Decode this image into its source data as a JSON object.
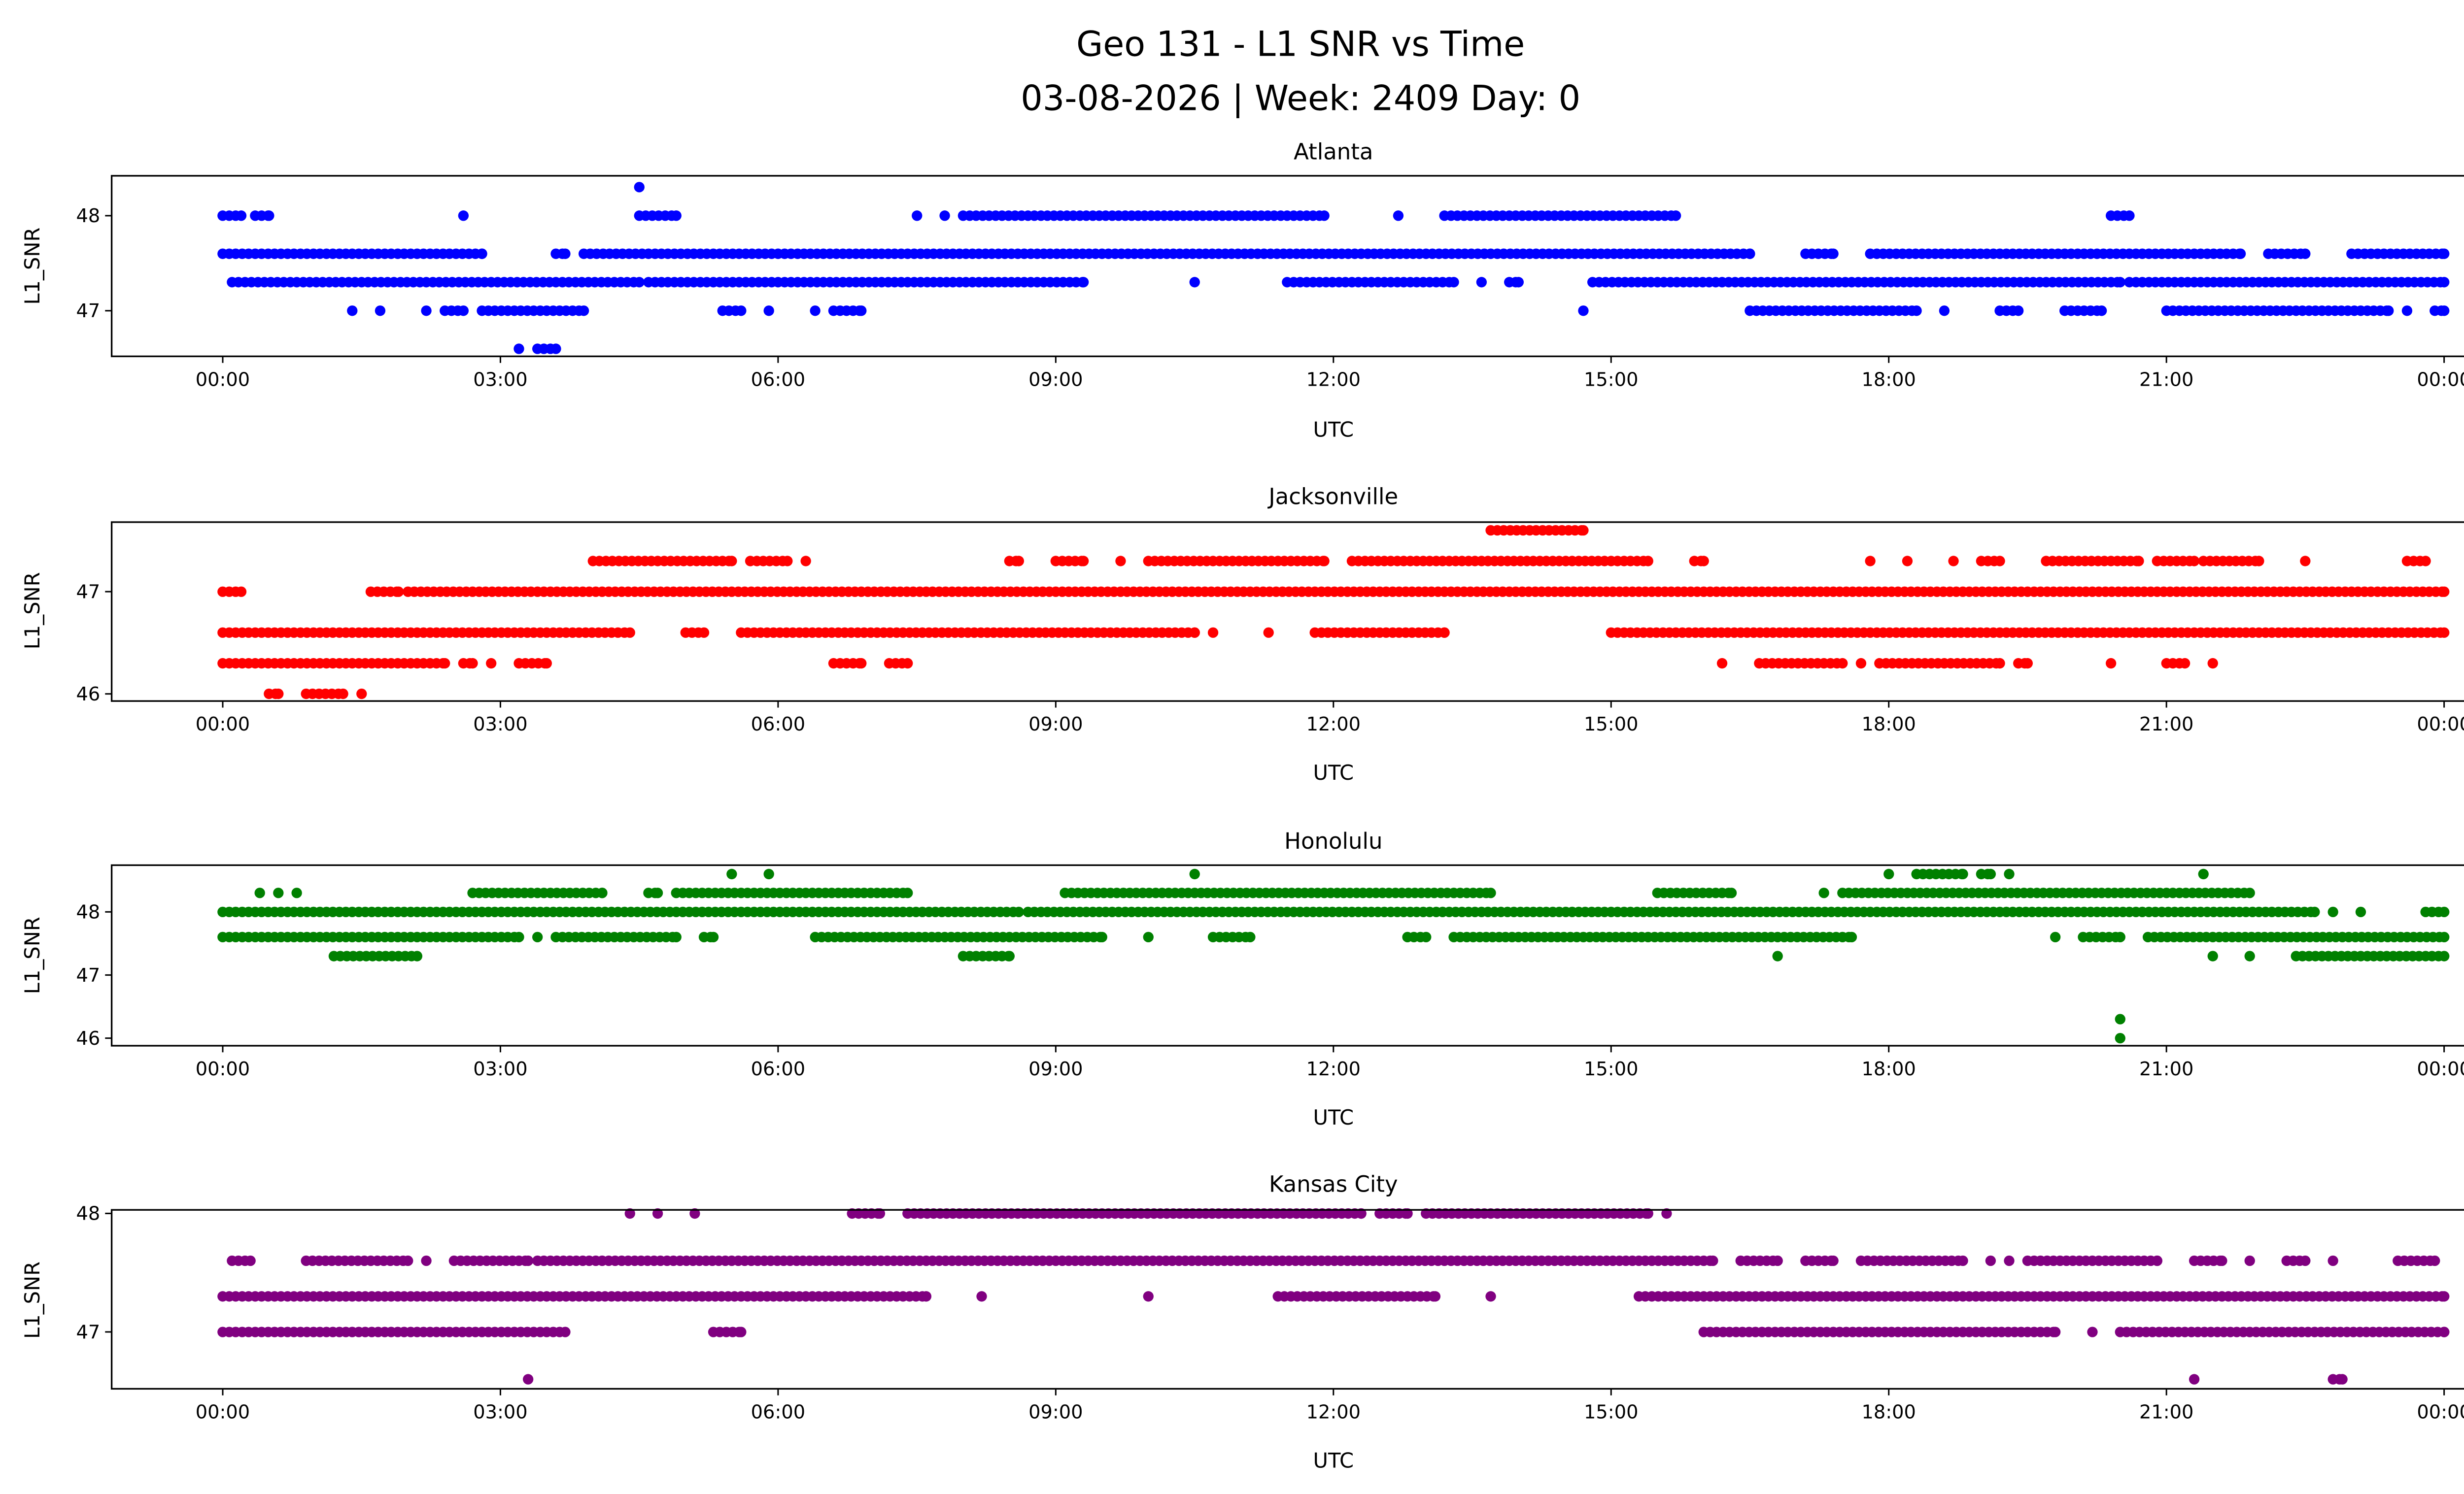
{
  "figure": {
    "title_line1": "Geo 131 - L1 SNR vs Time",
    "title_line2": "03-08-2026 | Week: 2409 Day: 0"
  },
  "chart_data": [
    {
      "type": "scatter",
      "title": "Atlanta",
      "xlabel": "UTC",
      "ylabel": "L1_SNR",
      "color": "#0000ff",
      "xlim_hours": [
        -1.2,
        25.2
      ],
      "xticks": [
        {
          "h": 0,
          "label": "00:00"
        },
        {
          "h": 3,
          "label": "03:00"
        },
        {
          "h": 6,
          "label": "06:00"
        },
        {
          "h": 9,
          "label": "09:00"
        },
        {
          "h": 12,
          "label": "12:00"
        },
        {
          "h": 15,
          "label": "15:00"
        },
        {
          "h": 18,
          "label": "18:00"
        },
        {
          "h": 21,
          "label": "21:00"
        },
        {
          "h": 24,
          "label": "00:00"
        }
      ],
      "yticks": [
        {
          "v": 47,
          "label": "47"
        },
        {
          "v": 48,
          "label": "48"
        }
      ],
      "ylim": [
        46.52,
        48.42
      ],
      "series": [
        {
          "snr": 48.3,
          "runs": [
            [
              4.5,
              4.5
            ]
          ]
        },
        {
          "snr": 48.0,
          "runs": [
            [
              0,
              0.2
            ],
            [
              0.35,
              0.5
            ],
            [
              2.6,
              2.6
            ],
            [
              4.5,
              4.9
            ],
            [
              7.5,
              7.5
            ],
            [
              7.8,
              7.8
            ],
            [
              8.0,
              11.9
            ],
            [
              12.7,
              12.7
            ],
            [
              13.2,
              15.7
            ],
            [
              20.4,
              20.6
            ]
          ]
        },
        {
          "snr": 47.6,
          "runs": [
            [
              0,
              2.8
            ],
            [
              3.6,
              3.7
            ],
            [
              3.9,
              16.5
            ],
            [
              17.1,
              17.4
            ],
            [
              17.8,
              21.8
            ],
            [
              22.1,
              22.5
            ],
            [
              23.0,
              24
            ]
          ]
        },
        {
          "snr": 47.3,
          "runs": [
            [
              0.1,
              4.5
            ],
            [
              4.6,
              9.3
            ],
            [
              10.5,
              10.5
            ],
            [
              11.5,
              13.3
            ],
            [
              13.6,
              13.6
            ],
            [
              13.9,
              14.0
            ],
            [
              14.8,
              20.5
            ],
            [
              20.6,
              24
            ]
          ]
        },
        {
          "snr": 47.0,
          "runs": [
            [
              1.4,
              1.4
            ],
            [
              1.7,
              1.7
            ],
            [
              2.2,
              2.2
            ],
            [
              2.4,
              2.6
            ],
            [
              2.8,
              3.9
            ],
            [
              5.4,
              5.6
            ],
            [
              5.9,
              5.9
            ],
            [
              6.4,
              6.4
            ],
            [
              6.6,
              6.9
            ],
            [
              14.7,
              14.7
            ],
            [
              16.5,
              18.3
            ],
            [
              18.6,
              18.6
            ],
            [
              19.2,
              19.4
            ],
            [
              19.9,
              20.3
            ],
            [
              21.0,
              23.4
            ],
            [
              23.6,
              23.6
            ],
            [
              23.9,
              24
            ]
          ]
        },
        {
          "snr": 46.6,
          "runs": [
            [
              3.2,
              3.2
            ],
            [
              3.4,
              3.6
            ]
          ]
        }
      ]
    },
    {
      "type": "scatter",
      "title": "Jacksonville",
      "xlabel": "UTC",
      "ylabel": "L1_SNR",
      "color": "#ff0000",
      "xlim_hours": [
        -1.2,
        25.2
      ],
      "xticks": [
        {
          "h": 0,
          "label": "00:00"
        },
        {
          "h": 3,
          "label": "03:00"
        },
        {
          "h": 6,
          "label": "06:00"
        },
        {
          "h": 9,
          "label": "09:00"
        },
        {
          "h": 12,
          "label": "12:00"
        },
        {
          "h": 15,
          "label": "15:00"
        },
        {
          "h": 18,
          "label": "18:00"
        },
        {
          "h": 21,
          "label": "21:00"
        },
        {
          "h": 24,
          "label": "00:00"
        }
      ],
      "yticks": [
        {
          "v": 46,
          "label": "46"
        },
        {
          "v": 47,
          "label": "47"
        }
      ],
      "ylim": [
        45.93,
        47.68
      ],
      "series": [
        {
          "snr": 47.6,
          "runs": [
            [
              13.7,
              14.7
            ]
          ]
        },
        {
          "snr": 47.3,
          "runs": [
            [
              4.0,
              5.5
            ],
            [
              5.7,
              6.1
            ],
            [
              6.3,
              6.3
            ],
            [
              8.5,
              8.6
            ],
            [
              9.0,
              9.3
            ],
            [
              9.7,
              9.7
            ],
            [
              10.0,
              11.9
            ],
            [
              12.2,
              15.4
            ],
            [
              15.9,
              16.0
            ],
            [
              17.8,
              17.8
            ],
            [
              18.2,
              18.2
            ],
            [
              18.7,
              18.7
            ],
            [
              19.0,
              19.2
            ],
            [
              19.7,
              20.7
            ],
            [
              20.9,
              21.3
            ],
            [
              21.4,
              22.0
            ],
            [
              22.5,
              22.5
            ],
            [
              23.6,
              23.8
            ]
          ]
        },
        {
          "snr": 47.0,
          "runs": [
            [
              0,
              0.2
            ],
            [
              1.6,
              1.9
            ],
            [
              2.0,
              24
            ]
          ]
        },
        {
          "snr": 46.6,
          "runs": [
            [
              0,
              4.4
            ],
            [
              5.0,
              5.2
            ],
            [
              5.6,
              10.5
            ],
            [
              10.7,
              10.7
            ],
            [
              11.3,
              11.3
            ],
            [
              11.8,
              13.2
            ],
            [
              15.0,
              24
            ]
          ]
        },
        {
          "snr": 46.3,
          "runs": [
            [
              0,
              2.4
            ],
            [
              2.6,
              2.7
            ],
            [
              2.9,
              2.9
            ],
            [
              3.2,
              3.5
            ],
            [
              6.6,
              6.9
            ],
            [
              7.2,
              7.4
            ],
            [
              16.2,
              16.2
            ],
            [
              16.6,
              17.5
            ],
            [
              17.7,
              17.7
            ],
            [
              17.9,
              19.2
            ],
            [
              19.4,
              19.5
            ],
            [
              20.4,
              20.4
            ],
            [
              21.0,
              21.2
            ],
            [
              21.5,
              21.5
            ]
          ]
        },
        {
          "snr": 46.0,
          "runs": [
            [
              0.5,
              0.6
            ],
            [
              0.9,
              1.3
            ],
            [
              1.5,
              1.5
            ]
          ]
        }
      ]
    },
    {
      "type": "scatter",
      "title": "Honolulu",
      "xlabel": "UTC",
      "ylabel": "L1_SNR",
      "color": "#008000",
      "xlim_hours": [
        -1.2,
        25.2
      ],
      "xticks": [
        {
          "h": 0,
          "label": "00:00"
        },
        {
          "h": 3,
          "label": "03:00"
        },
        {
          "h": 6,
          "label": "06:00"
        },
        {
          "h": 9,
          "label": "09:00"
        },
        {
          "h": 12,
          "label": "12:00"
        },
        {
          "h": 15,
          "label": "15:00"
        },
        {
          "h": 18,
          "label": "18:00"
        },
        {
          "h": 21,
          "label": "21:00"
        },
        {
          "h": 24,
          "label": "00:00"
        }
      ],
      "yticks": [
        {
          "v": 46,
          "label": "46"
        },
        {
          "v": 47,
          "label": "47"
        },
        {
          "v": 48,
          "label": "48"
        }
      ],
      "ylim": [
        45.88,
        48.74
      ],
      "series": [
        {
          "snr": 48.6,
          "runs": [
            [
              5.5,
              5.5
            ],
            [
              5.9,
              5.9
            ],
            [
              10.5,
              10.5
            ],
            [
              18.0,
              18.0
            ],
            [
              18.3,
              18.8
            ],
            [
              19.0,
              19.1
            ],
            [
              19.3,
              19.3
            ],
            [
              21.4,
              21.4
            ]
          ]
        },
        {
          "snr": 48.3,
          "runs": [
            [
              0.4,
              0.4
            ],
            [
              0.6,
              0.6
            ],
            [
              0.8,
              0.8
            ],
            [
              2.7,
              4.1
            ],
            [
              4.6,
              4.7
            ],
            [
              4.9,
              7.4
            ],
            [
              9.1,
              13.7
            ],
            [
              15.5,
              16.3
            ],
            [
              17.3,
              17.3
            ],
            [
              17.5,
              21.9
            ]
          ]
        },
        {
          "snr": 48.0,
          "runs": [
            [
              0,
              8.6
            ],
            [
              8.7,
              22.6
            ],
            [
              22.8,
              22.8
            ],
            [
              23.1,
              23.1
            ],
            [
              23.8,
              24
            ]
          ]
        },
        {
          "snr": 47.6,
          "runs": [
            [
              0,
              3.2
            ],
            [
              3.4,
              3.4
            ],
            [
              3.6,
              4.9
            ],
            [
              5.2,
              5.3
            ],
            [
              6.4,
              9.5
            ],
            [
              10.0,
              10.0
            ],
            [
              10.7,
              11.1
            ],
            [
              12.8,
              13.0
            ],
            [
              13.3,
              17.6
            ],
            [
              19.8,
              19.8
            ],
            [
              20.1,
              20.5
            ],
            [
              20.8,
              24
            ]
          ]
        },
        {
          "snr": 47.3,
          "runs": [
            [
              1.2,
              2.1
            ],
            [
              8.0,
              8.5
            ],
            [
              16.8,
              16.8
            ],
            [
              21.5,
              21.5
            ],
            [
              21.9,
              21.9
            ],
            [
              22.4,
              24
            ]
          ]
        },
        {
          "snr": 46.3,
          "runs": [
            [
              20.5,
              20.5
            ]
          ]
        },
        {
          "snr": 46.0,
          "runs": [
            [
              20.5,
              20.5
            ]
          ]
        }
      ]
    },
    {
      "type": "scatter",
      "title": "Kansas City",
      "xlabel": "UTC",
      "ylabel": "L1_SNR",
      "color": "#800080",
      "xlim_hours": [
        -1.2,
        25.2
      ],
      "xticks": [
        {
          "h": 0,
          "label": "00:00"
        },
        {
          "h": 3,
          "label": "03:00"
        },
        {
          "h": 6,
          "label": "06:00"
        },
        {
          "h": 9,
          "label": "09:00"
        },
        {
          "h": 12,
          "label": "12:00"
        },
        {
          "h": 15,
          "label": "15:00"
        },
        {
          "h": 18,
          "label": "18:00"
        },
        {
          "h": 21,
          "label": "21:00"
        },
        {
          "h": 24,
          "label": "00:00"
        }
      ],
      "yticks": [
        {
          "v": 47,
          "label": "47"
        },
        {
          "v": 48,
          "label": "48"
        }
      ],
      "ylim": [
        46.52,
        48.03
      ],
      "series": [
        {
          "snr": 48.0,
          "runs": [
            [
              4.4,
              4.4
            ],
            [
              4.7,
              4.7
            ],
            [
              5.1,
              5.1
            ],
            [
              6.8,
              7.1
            ],
            [
              7.4,
              12.3
            ],
            [
              12.5,
              12.8
            ],
            [
              13.0,
              15.4
            ],
            [
              15.6,
              15.6
            ]
          ]
        },
        {
          "snr": 47.6,
          "runs": [
            [
              0.1,
              0.3
            ],
            [
              0.9,
              2.0
            ],
            [
              2.2,
              2.2
            ],
            [
              2.5,
              3.3
            ],
            [
              3.4,
              16.1
            ],
            [
              16.4,
              16.8
            ],
            [
              17.1,
              17.4
            ],
            [
              17.7,
              18.8
            ],
            [
              19.1,
              19.1
            ],
            [
              19.3,
              19.3
            ],
            [
              19.5,
              20.9
            ],
            [
              21.3,
              21.6
            ],
            [
              21.9,
              21.9
            ],
            [
              22.3,
              22.5
            ],
            [
              22.8,
              22.8
            ],
            [
              23.5,
              23.9
            ]
          ]
        },
        {
          "snr": 47.3,
          "runs": [
            [
              0,
              7.6
            ],
            [
              8.2,
              8.2
            ],
            [
              10.0,
              10.0
            ],
            [
              11.4,
              13.1
            ],
            [
              13.7,
              13.7
            ],
            [
              15.3,
              24
            ]
          ]
        },
        {
          "snr": 47.0,
          "runs": [
            [
              0,
              3.7
            ],
            [
              5.3,
              5.6
            ],
            [
              16.0,
              19.8
            ],
            [
              20.2,
              20.2
            ],
            [
              20.5,
              24
            ]
          ]
        },
        {
          "snr": 46.6,
          "runs": [
            [
              3.3,
              3.3
            ],
            [
              21.3,
              21.3
            ],
            [
              22.8,
              22.9
            ]
          ]
        }
      ]
    }
  ]
}
